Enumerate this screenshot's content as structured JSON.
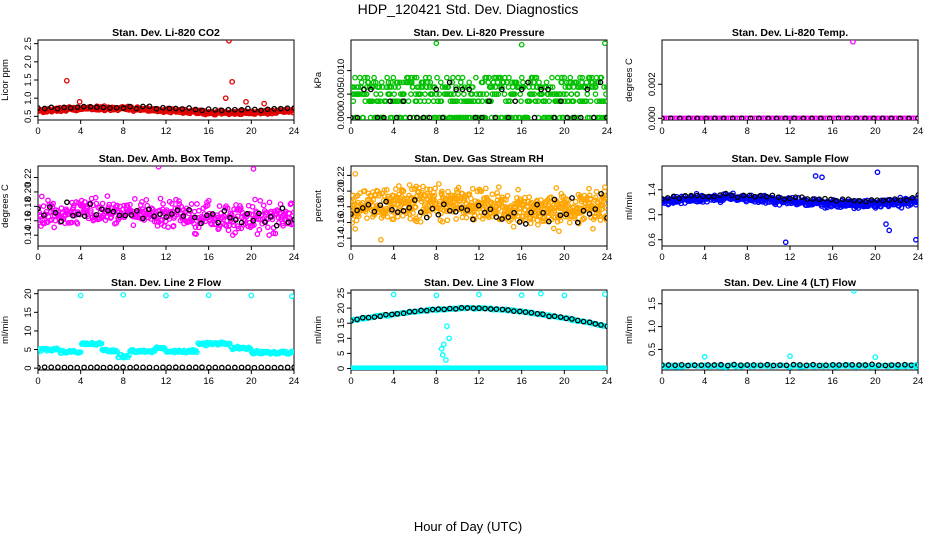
{
  "title": "HDP_120421  Std. Dev. Diagnostics",
  "xlabel": "Hour of Day (UTC)",
  "chart_data": [
    {
      "id": "co2",
      "type": "scatter",
      "title": "Stan. Dev. Li-820 CO2",
      "ylabel": "Licor ppm",
      "xlim": [
        0,
        24
      ],
      "ylim": [
        0.4,
        2.6
      ],
      "xticks": [
        "0",
        "4",
        "8",
        "12",
        "16",
        "20",
        "24"
      ],
      "yticks": [
        {
          "v": 0.5,
          "t": "0.5"
        },
        {
          "v": 1.0,
          "t": "1.0"
        },
        {
          "v": 1.5,
          "t": "1.5"
        },
        {
          "v": 2.0,
          "t": "2.0"
        },
        {
          "v": 2.5,
          "t": "2.5"
        }
      ],
      "color": "#e00000",
      "gen": {
        "mode": "band",
        "n": 430,
        "base": 0.66,
        "amp": 0.06,
        "jit": 0.08
      },
      "black": {
        "mode": "band",
        "n": 40,
        "base": 0.72,
        "amp": 0.04,
        "jit": 0.05
      },
      "outliers": [
        [
          2.7,
          1.48
        ],
        [
          3.9,
          0.9
        ],
        [
          17.9,
          2.58
        ],
        [
          17.6,
          1.0
        ],
        [
          18.2,
          1.45
        ],
        [
          19.5,
          0.9
        ],
        [
          21.2,
          0.85
        ]
      ]
    },
    {
      "id": "press",
      "type": "scatter",
      "title": "Stan. Dev. Li-820 Pressure",
      "ylabel": "kPa",
      "xlim": [
        0,
        24
      ],
      "ylim": [
        -0.0005,
        0.0165
      ],
      "xticks": [
        "0",
        "4",
        "8",
        "12",
        "16",
        "20",
        "24"
      ],
      "yticks": [
        {
          "v": 0.0,
          "t": "0.000"
        },
        {
          "v": 0.005,
          "t": "0.005"
        },
        {
          "v": 0.01,
          "t": "0.010"
        }
      ],
      "color": "#00c000",
      "gen": {
        "mode": "levels",
        "n": 480,
        "levels": [
          0.0,
          0.0035,
          0.005,
          0.0065,
          0.0075,
          0.0085
        ],
        "weights": [
          4,
          3,
          3,
          3,
          2,
          2
        ]
      },
      "black": {
        "mode": "levels",
        "n": 40,
        "levels": [
          0.0,
          0.0035,
          0.006,
          0.0075
        ],
        "weights": [
          4,
          2,
          2,
          1
        ]
      },
      "outliers": [
        [
          8.0,
          0.0158
        ],
        [
          16.0,
          0.0155
        ],
        [
          23.8,
          0.0158
        ]
      ]
    },
    {
      "id": "ltemp",
      "type": "scatter",
      "title": "Stan. Dev. Li-820 Temp.",
      "ylabel": "degrees C",
      "xlim": [
        0,
        24
      ],
      "ylim": [
        -0.0001,
        0.0046
      ],
      "xticks": [
        "0",
        "4",
        "8",
        "12",
        "16",
        "20",
        "24"
      ],
      "yticks": [
        {
          "v": 0.0,
          "t": "0.000"
        },
        {
          "v": 0.002,
          "t": "0.002"
        }
      ],
      "color": "#ff00ff",
      "gen": {
        "mode": "band",
        "n": 120,
        "base": 0.0,
        "amp": 0.0,
        "jit": 0.0
      },
      "black": {
        "mode": "band",
        "n": 30,
        "base": 0.0,
        "amp": 0.0,
        "jit": 0.0
      },
      "outliers": [
        [
          17.9,
          0.0045
        ]
      ]
    },
    {
      "id": "abtemp",
      "type": "scatter",
      "title": "Stan. Dev. Amb. Box Temp.",
      "ylabel": "degrees C",
      "xlim": [
        0,
        24
      ],
      "ylim": [
        0.125,
        0.236
      ],
      "xticks": [
        "0",
        "4",
        "8",
        "12",
        "16",
        "20",
        "24"
      ],
      "yticks": [
        {
          "v": 0.14,
          "t": "0.14"
        },
        {
          "v": 0.16,
          "t": "0.16"
        },
        {
          "v": 0.18,
          "t": "0.18"
        },
        {
          "v": 0.2,
          "t": "0.20"
        },
        {
          "v": 0.22,
          "t": "0.22"
        }
      ],
      "color": "#ff00ff",
      "gen": {
        "mode": "band",
        "n": 430,
        "base": 0.168,
        "amp": 0.005,
        "jit": 0.03
      },
      "black": {
        "mode": "band",
        "n": 45,
        "base": 0.17,
        "amp": 0.005,
        "jit": 0.02
      },
      "outliers": [
        [
          11.3,
          0.235
        ],
        [
          20.2,
          0.232
        ]
      ]
    },
    {
      "id": "rh",
      "type": "scatter",
      "title": "Stan. Dev. Gas Stream RH",
      "ylabel": "percent",
      "xlim": [
        0,
        24
      ],
      "ylim": [
        0.13,
        0.232
      ],
      "xticks": [
        "0",
        "4",
        "8",
        "12",
        "16",
        "20",
        "24"
      ],
      "yticks": [
        {
          "v": 0.14,
          "t": "0.14"
        },
        {
          "v": 0.16,
          "t": "0.16"
        },
        {
          "v": 0.18,
          "t": "0.18"
        },
        {
          "v": 0.2,
          "t": "0.20"
        },
        {
          "v": 0.22,
          "t": "0.22"
        }
      ],
      "color": "#ffa500",
      "gen": {
        "mode": "band",
        "n": 650,
        "base": 0.18,
        "amp": 0.005,
        "jit": 0.032
      },
      "black": {
        "mode": "band",
        "n": 45,
        "base": 0.178,
        "amp": 0.004,
        "jit": 0.025
      },
      "outliers": [
        [
          2.8,
          0.138
        ],
        [
          0.4,
          0.222
        ],
        [
          23.8,
          0.205
        ]
      ]
    },
    {
      "id": "sflow",
      "type": "scatter",
      "title": "Stan. Dev. Sample Flow",
      "ylabel": "ml/min",
      "xlim": [
        0,
        24
      ],
      "ylim": [
        0.5,
        1.78
      ],
      "xticks": [
        "0",
        "4",
        "8",
        "12",
        "16",
        "20",
        "24"
      ],
      "yticks": [
        {
          "v": 0.6,
          "t": "0.6"
        },
        {
          "v": 1.0,
          "t": "1.0"
        },
        {
          "v": 1.4,
          "t": "1.4"
        }
      ],
      "color": "#0000ff",
      "gen": {
        "mode": "band",
        "n": 470,
        "base": 1.22,
        "amp": 0.05,
        "jit": 0.09
      },
      "black": {
        "mode": "band",
        "n": 45,
        "base": 1.27,
        "amp": 0.04,
        "jit": 0.06
      },
      "outliers": [
        [
          11.6,
          0.56
        ],
        [
          15.0,
          1.6
        ],
        [
          23.8,
          0.6
        ],
        [
          21.0,
          0.85
        ],
        [
          21.3,
          0.75
        ],
        [
          20.2,
          1.68
        ],
        [
          14.4,
          1.62
        ]
      ]
    },
    {
      "id": "l2",
      "type": "scatter",
      "title": "Stan. Dev. Line 2 Flow",
      "ylabel": "ml/min",
      "xlim": [
        0,
        24
      ],
      "ylim": [
        -0.5,
        21
      ],
      "xticks": [
        "0",
        "4",
        "8",
        "12",
        "16",
        "20",
        "24"
      ],
      "yticks": [
        {
          "v": 0,
          "t": "0"
        },
        {
          "v": 5,
          "t": "5"
        },
        {
          "v": 10,
          "t": "10"
        },
        {
          "v": 15,
          "t": "15"
        },
        {
          "v": 20,
          "t": "20"
        }
      ],
      "color": "#00ffff",
      "gen": {
        "mode": "steps",
        "n": 260,
        "steps": [
          [
            0,
            2,
            5.0
          ],
          [
            2,
            4,
            4.4
          ],
          [
            4,
            6,
            6.5
          ],
          [
            6,
            7.5,
            4.7
          ],
          [
            7.5,
            8.6,
            3.2
          ],
          [
            8.6,
            11,
            4.6
          ],
          [
            11,
            12,
            5.4
          ],
          [
            12,
            15,
            4.5
          ],
          [
            15,
            18,
            6.6
          ],
          [
            18,
            20,
            5.4
          ],
          [
            20,
            24,
            4.2
          ]
        ],
        "jit": 0.6
      },
      "black": {
        "mode": "band",
        "n": 40,
        "base": 0.2,
        "amp": 0.0,
        "jit": 0.1
      },
      "outliers": [
        [
          4.0,
          19.5
        ],
        [
          8.0,
          19.7
        ],
        [
          12.0,
          19.5
        ],
        [
          16.0,
          19.6
        ],
        [
          20.0,
          19.5
        ],
        [
          23.8,
          19.3
        ]
      ]
    },
    {
      "id": "l3",
      "type": "scatter",
      "title": "Stan. Dev. Line 3 Flow",
      "ylabel": "ml/min",
      "xlim": [
        0,
        24
      ],
      "ylim": [
        -0.5,
        26
      ],
      "xticks": [
        "0",
        "4",
        "8",
        "12",
        "16",
        "20",
        "24"
      ],
      "yticks": [
        {
          "v": 0,
          "t": "0"
        },
        {
          "v": 5,
          "t": "5"
        },
        {
          "v": 10,
          "t": "10"
        },
        {
          "v": 15,
          "t": "15"
        },
        {
          "v": 20,
          "t": "20"
        },
        {
          "v": 25,
          "t": "25"
        }
      ],
      "color": "#00ffff",
      "gen": {
        "mode": "arch",
        "n": 200,
        "jit": 0.4
      },
      "black": {
        "mode": "arch",
        "n": 45,
        "jit": 0.3
      },
      "outliers": [
        [
          4.0,
          24.5
        ],
        [
          8.0,
          24.2
        ],
        [
          12.0,
          24.5
        ],
        [
          16.0,
          24.3
        ],
        [
          17.8,
          24.8
        ],
        [
          20.0,
          24.2
        ],
        [
          23.8,
          24.6
        ],
        [
          8.5,
          6.5
        ],
        [
          8.6,
          4.5
        ],
        [
          8.9,
          2.8
        ],
        [
          9.2,
          10
        ],
        [
          8.7,
          8
        ],
        [
          9.0,
          14
        ]
      ],
      "zeroline": {
        "n": 220,
        "color": "#00ffff"
      }
    },
    {
      "id": "l4",
      "type": "scatter",
      "title": "Stan. Dev. Line 4 (LT) Flow",
      "ylabel": "ml/min",
      "xlim": [
        0,
        24
      ],
      "ylim": [
        0.05,
        1.8
      ],
      "xticks": [
        "0",
        "4",
        "8",
        "12",
        "16",
        "20",
        "24"
      ],
      "yticks": [
        {
          "v": 0.5,
          "t": "0.5"
        },
        {
          "v": 1.0,
          "t": "1.0"
        },
        {
          "v": 1.5,
          "t": "1.5"
        }
      ],
      "color": "#00ffff",
      "gen": {
        "mode": "band",
        "n": 150,
        "base": 0.14,
        "amp": 0.0,
        "jit": 0.03
      },
      "black": {
        "mode": "band",
        "n": 40,
        "base": 0.16,
        "amp": 0.0,
        "jit": 0.02
      },
      "outliers": [
        [
          4.0,
          0.34
        ],
        [
          12.0,
          0.35
        ],
        [
          18.0,
          1.78
        ],
        [
          20.0,
          0.33
        ],
        [
          23.8,
          0.16
        ]
      ]
    }
  ]
}
